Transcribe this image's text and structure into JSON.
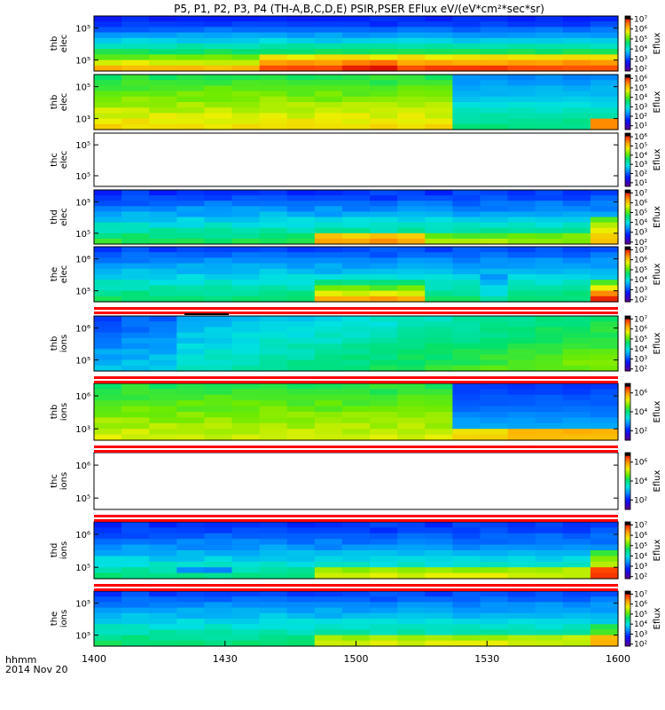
{
  "chart_data": {
    "type": "heatmap",
    "title": "P5, P1, P2, P3, P4 (TH-A,B,C,D,E) PSIR,PSER EFlux eV/(eV*cm²*sec*sr)",
    "x_label": "hhmm",
    "date_label": "2014 Nov 20",
    "x_ticks": [
      "1400",
      "1430",
      "1500",
      "1530",
      "1600"
    ],
    "x_range": [
      "14:00",
      "16:00"
    ],
    "colorbar_label": "Eflux",
    "colorbar_scale": "log",
    "panels": [
      {
        "name": "thb elec",
        "ylabel": [
          "thb",
          "elec"
        ],
        "yticks": [
          "10⁵",
          "10⁵"
        ],
        "cbar_ticks": [
          "10²",
          "10³",
          "10⁴",
          "10⁵",
          "10⁶",
          "10⁷"
        ],
        "cbar_range_exp": [
          1.8,
          7.3
        ],
        "coverage": "full",
        "kind": "thb_elec"
      },
      {
        "name": "thb elec",
        "ylabel": [
          "thb",
          "elec"
        ],
        "yticks": [
          "10⁵",
          "10³"
        ],
        "cbar_ticks": [
          "10¹",
          "10²",
          "10³",
          "10⁴",
          "10⁵",
          "10⁶"
        ],
        "cbar_range_exp": [
          0.6,
          6.4
        ],
        "coverage": "full",
        "kind": "thb2_elec"
      },
      {
        "name": "thc elec",
        "ylabel": [
          "thc",
          "elec"
        ],
        "yticks": [
          "10⁵",
          "10⁵"
        ],
        "cbar_ticks": [
          "10¹",
          "10²",
          "10³",
          "10⁴",
          "10⁵",
          "10⁶"
        ],
        "cbar_range_exp": [
          0.6,
          6.4
        ],
        "coverage": "none",
        "kind": "empty"
      },
      {
        "name": "thd elec",
        "ylabel": [
          "thd",
          "elec"
        ],
        "yticks": [
          "10⁵",
          "10⁵"
        ],
        "cbar_ticks": [
          "10²",
          "10³",
          "10⁴",
          "10⁵",
          "10⁶",
          "10⁷"
        ],
        "cbar_range_exp": [
          1.8,
          7.3
        ],
        "coverage": "full",
        "kind": "thd_elec"
      },
      {
        "name": "the elec",
        "ylabel": [
          "the",
          "elec"
        ],
        "yticks": [
          "10⁶",
          "10⁵"
        ],
        "cbar_ticks": [
          "10²",
          "10³",
          "10⁴",
          "10⁵",
          "10⁶",
          "10⁷"
        ],
        "cbar_range_exp": [
          1.8,
          7.3
        ],
        "coverage": "full",
        "kind": "the_elec"
      },
      {
        "name": "thb ions",
        "ylabel": [
          "thb",
          "ions"
        ],
        "yticks": [
          "10⁶",
          "10⁵"
        ],
        "cbar_ticks": [
          "10²",
          "10³",
          "10⁴",
          "10⁵",
          "10⁶",
          "10⁷"
        ],
        "cbar_range_exp": [
          1.8,
          7.3
        ],
        "coverage": "full",
        "kind": "thb_ions"
      },
      {
        "name": "thb ions",
        "ylabel": [
          "thb",
          "ions"
        ],
        "yticks": [
          "10⁶",
          "10³"
        ],
        "cbar_ticks": [
          "10²",
          "10⁴",
          "10⁶"
        ],
        "cbar_range_exp": [
          1.0,
          7.0
        ],
        "coverage": "full",
        "kind": "thb2_ions"
      },
      {
        "name": "thc ions",
        "ylabel": [
          "thc",
          "ions"
        ],
        "yticks": [
          "10⁶",
          "10⁵"
        ],
        "cbar_ticks": [
          "10²",
          "10⁴",
          "10⁶"
        ],
        "cbar_range_exp": [
          1.0,
          7.0
        ],
        "coverage": "none",
        "kind": "empty"
      },
      {
        "name": "thd ions",
        "ylabel": [
          "thd",
          "ions"
        ],
        "yticks": [
          "10⁶",
          "10⁵"
        ],
        "cbar_ticks": [
          "10²",
          "10³",
          "10⁴",
          "10⁵",
          "10⁶",
          "10⁷"
        ],
        "cbar_range_exp": [
          1.8,
          7.3
        ],
        "coverage": "full",
        "kind": "thd_ions"
      },
      {
        "name": "the ions",
        "ylabel": [
          "the",
          "ions"
        ],
        "yticks": [
          "10⁵",
          "10⁵"
        ],
        "cbar_ticks": [
          "10²",
          "10³",
          "10⁴",
          "10⁵",
          "10⁶",
          "10⁷"
        ],
        "cbar_range_exp": [
          1.8,
          7.3
        ],
        "coverage": "full",
        "kind": "the_ions"
      }
    ]
  }
}
